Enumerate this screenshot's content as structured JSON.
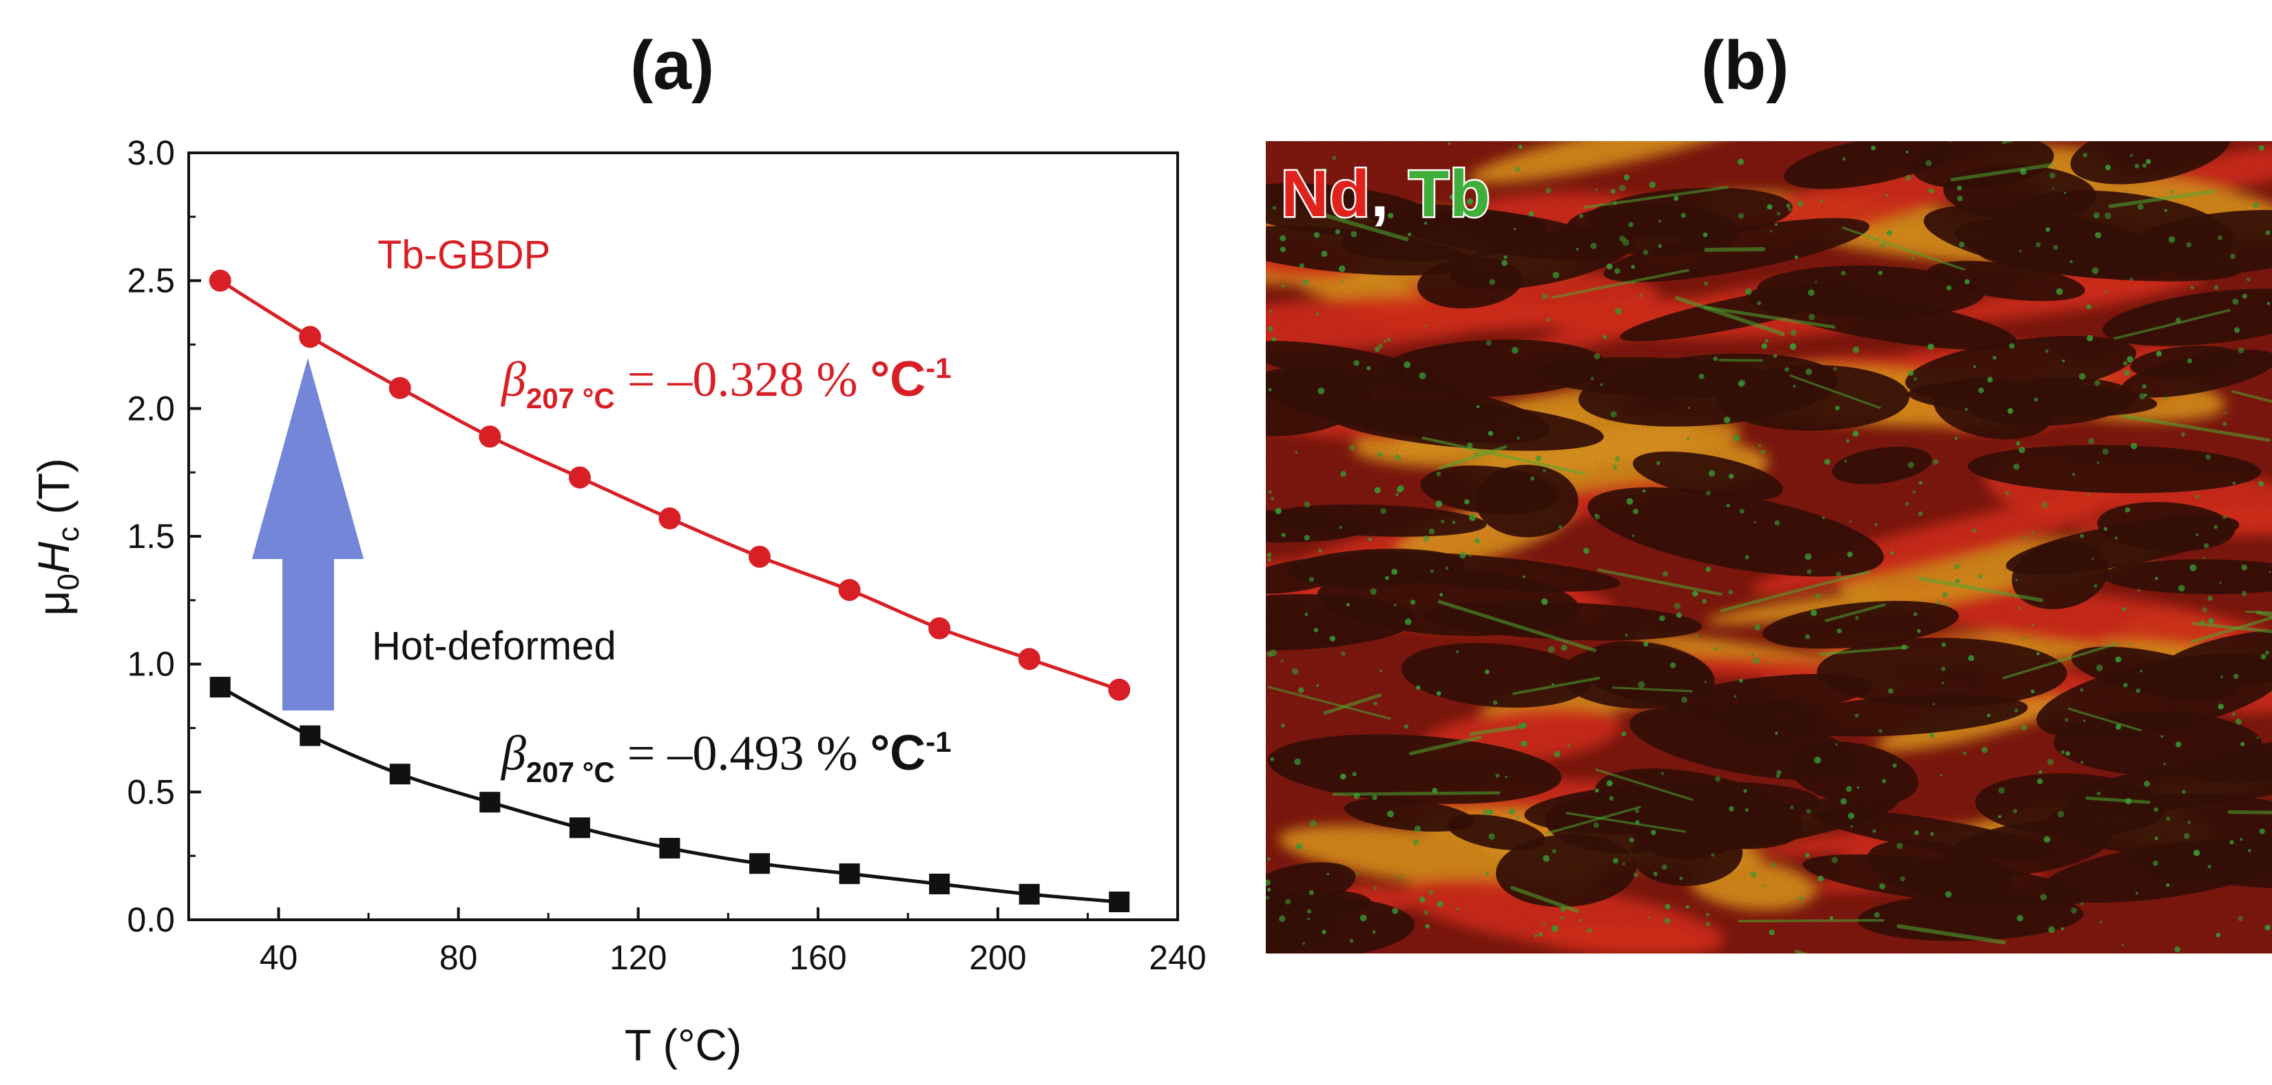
{
  "panels": {
    "a_label": "(a)",
    "b_label": "(b)"
  },
  "chart_data": {
    "type": "line",
    "title": "(a)",
    "xlabel": "T (°C)",
    "ylabel_parts": {
      "mu": "μ",
      "sub0": "0",
      "H": "H",
      "subc": "c",
      "unit": " (T)"
    },
    "xlim": [
      20,
      240
    ],
    "ylim": [
      0.0,
      3.0
    ],
    "x_ticks": [
      40,
      80,
      120,
      160,
      200,
      240
    ],
    "y_ticks": [
      0.0,
      0.5,
      1.0,
      1.5,
      2.0,
      2.5,
      3.0
    ],
    "x_tick_labels": [
      "40",
      "80",
      "120",
      "160",
      "200",
      "240"
    ],
    "y_tick_labels": [
      "0.0",
      "0.5",
      "1.0",
      "1.5",
      "2.0",
      "2.5",
      "3.0"
    ],
    "series": [
      {
        "name": "Tb-GBDP",
        "color": "#d81f26",
        "marker": "circle",
        "x": [
          27,
          47,
          67,
          87,
          107,
          127,
          147,
          167,
          187,
          207,
          227
        ],
        "values": [
          2.5,
          2.28,
          2.08,
          1.89,
          1.73,
          1.57,
          1.42,
          1.29,
          1.14,
          1.02,
          0.9
        ]
      },
      {
        "name": "Hot-deformed",
        "color": "#111111",
        "marker": "square",
        "x": [
          27,
          47,
          67,
          87,
          107,
          127,
          147,
          167,
          187,
          207,
          227
        ],
        "values": [
          0.91,
          0.72,
          0.57,
          0.46,
          0.36,
          0.28,
          0.22,
          0.18,
          0.14,
          0.1,
          0.07
        ]
      }
    ],
    "annotations": {
      "tb_label": "Tb-GBDP",
      "hd_label": "Hot-deformed",
      "beta_symbol": "β",
      "beta_sub": "207 °C",
      "beta_tb_value": " = –0.328 % ",
      "beta_hd_value": " = –0.493 % ",
      "unit_base": "°C",
      "unit_exp": "-1"
    },
    "arrow_color": "#6b7fd6"
  },
  "micrograph": {
    "legend_nd": "Nd",
    "legend_comma": ",",
    "legend_tb": " Tb",
    "nd_color": "#e0221c",
    "tb_color": "#3fae3a"
  }
}
